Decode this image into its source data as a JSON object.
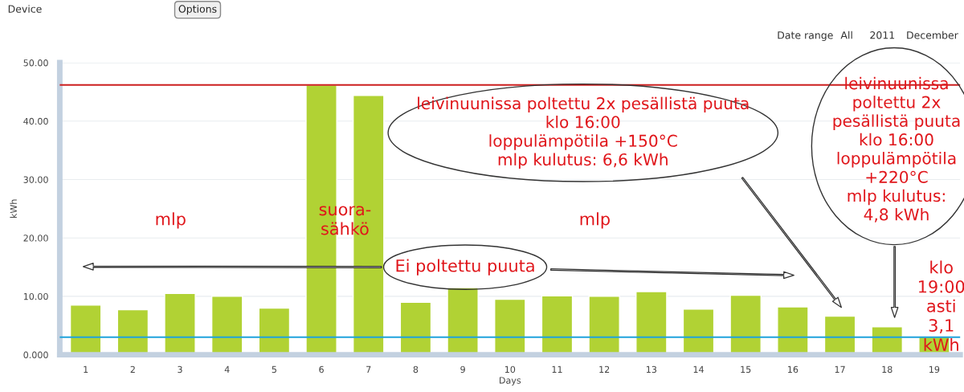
{
  "chart_data": {
    "type": "bar",
    "categories": [
      "1",
      "2",
      "3",
      "4",
      "5",
      "6",
      "7",
      "8",
      "9",
      "10",
      "11",
      "12",
      "13",
      "14",
      "15",
      "16",
      "17",
      "18",
      "19"
    ],
    "values": [
      8.5,
      7.7,
      10.5,
      10.0,
      8.0,
      46.2,
      44.4,
      9.0,
      11.5,
      9.5,
      10.1,
      10.0,
      10.8,
      7.8,
      10.2,
      8.2,
      6.6,
      4.8,
      3.1
    ],
    "color": "#b1d234",
    "xlabel": "Days",
    "ylabel": "kWh",
    "ylim": [
      0,
      50
    ],
    "yticks": [
      {
        "value": 0,
        "label": "0.000"
      },
      {
        "value": 10,
        "label": "10.00"
      },
      {
        "value": 20,
        "label": "20.00"
      },
      {
        "value": 30,
        "label": "30.00"
      },
      {
        "value": 40,
        "label": "40.00"
      },
      {
        "value": 50,
        "label": "50.00"
      }
    ],
    "grid": "y",
    "ref_lines": [
      {
        "axis": "y",
        "value": 46.2,
        "label": null,
        "color": "#cc1f1f"
      },
      {
        "axis": "y",
        "value": 3.0,
        "label": null,
        "color": "#1fa3dc"
      }
    ],
    "annotations": [
      "mlp",
      "suora-\nsähkö",
      "mlp",
      "Ei poltettu puuta",
      "leivinuunissa poltettu 2x pesällistä puuta\nklo 16:00\nloppulämpötila +150°C\nmlp kulutus: 6,6 kWh",
      "leivinuunissa\npoltettu 2x\npesällistä puuta\nklo 16:00\nloppulämpötila\n+220°C\nmlp kulutus:\n4,8 kWh",
      "klo\n19:00\nasti\n3,1\nkWh",
      "Device",
      "Options",
      "Date range",
      "All",
      "2011",
      "December"
    ]
  }
}
